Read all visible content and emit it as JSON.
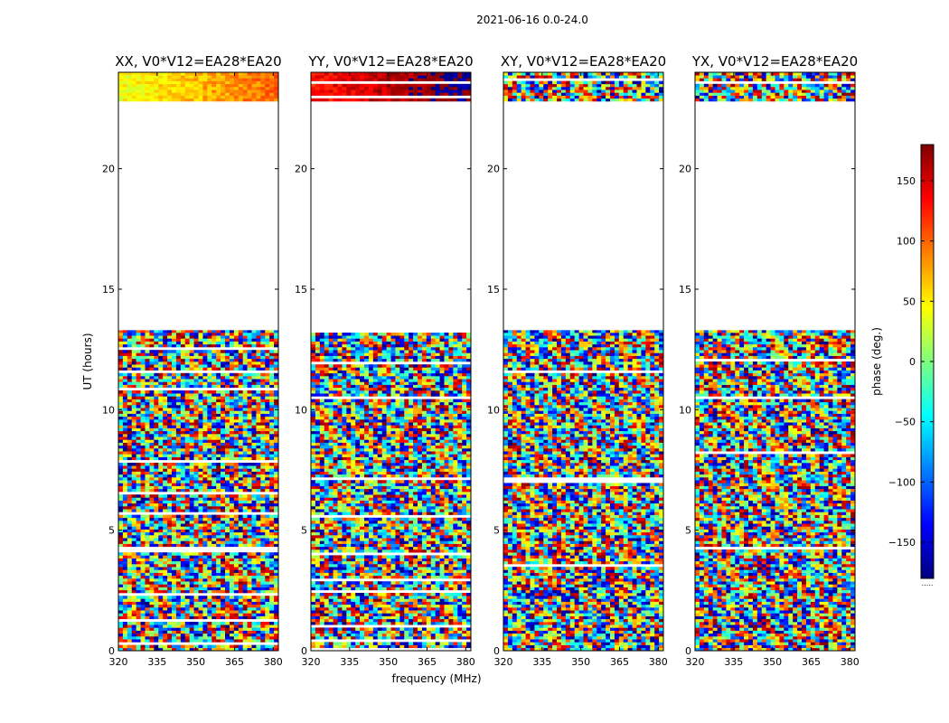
{
  "figure_title": "2021-06-16 0.0-24.0",
  "colors": {
    "background": "#ffffff",
    "axis": "#000000",
    "empty_band": "#ffffff"
  },
  "chart_data": {
    "type": "heatmap",
    "suptitle": "2021-06-16 0.0-24.0",
    "xlabel": "frequency (MHz)",
    "ylabel": "UT (hours)",
    "xlim": [
      320,
      382
    ],
    "ylim": [
      0,
      24
    ],
    "xticks": [
      320,
      335,
      350,
      365,
      380
    ],
    "yticks": [
      0,
      5,
      10,
      15,
      20
    ],
    "colormap": "jet",
    "colorbar": {
      "label": "phase (deg.)",
      "range": [
        -180,
        180
      ],
      "ticks": [
        150,
        100,
        50,
        0,
        -50,
        -100,
        -150
      ],
      "tick_labels": [
        "150",
        "100",
        "50",
        "0",
        "−50",
        "−100",
        "−150"
      ],
      "bottom_mark": "....."
    },
    "data_coverage_ut": [
      [
        0,
        13.3
      ],
      [
        22.8,
        24
      ]
    ],
    "panels": [
      {
        "title": "XX, V0*V12=EA28*EA20",
        "pol": "XX",
        "mean_phase_top_block": 60
      },
      {
        "title": "YY, V0*V12=EA28*EA20",
        "pol": "YY",
        "mean_phase_top_block": 150
      },
      {
        "title": "XY, V0*V12=EA28*EA20",
        "pol": "XY",
        "mean_phase_top_block": null
      },
      {
        "title": "YX, V0*V12=EA28*EA20",
        "pol": "YX",
        "mean_phase_top_block": null
      }
    ]
  }
}
